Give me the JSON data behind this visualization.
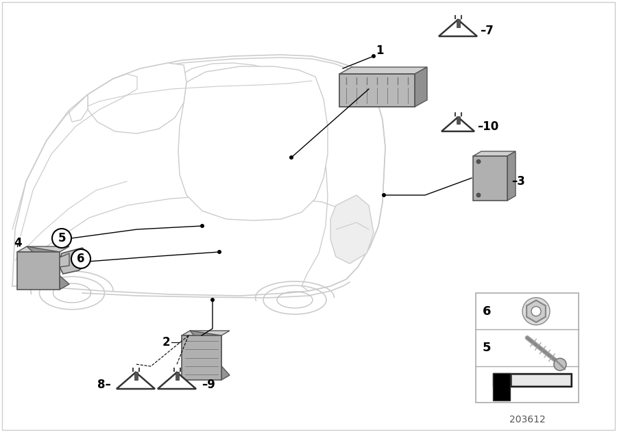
{
  "bg_color": "#ffffff",
  "part_number": "203612",
  "fig_width": 9.0,
  "fig_height": 6.31,
  "car_color": "#cccccc",
  "car_lw": 1.2,
  "part_gray": "#a0a0a0",
  "part_dark": "#808080",
  "label_fontsize": 11,
  "number_fontsize": 12
}
